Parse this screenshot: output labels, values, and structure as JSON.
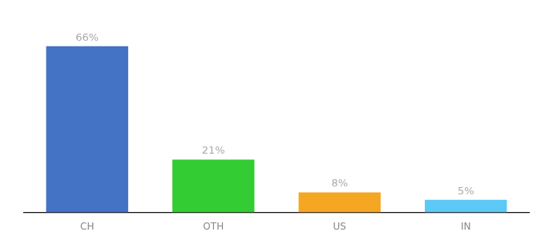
{
  "chart_data": {
    "type": "bar",
    "categories": [
      "CH",
      "OTH",
      "US",
      "IN"
    ],
    "values": [
      66,
      21,
      8,
      5
    ],
    "value_labels": [
      "66%",
      "21%",
      "8%",
      "5%"
    ],
    "colors": [
      "#4472c4",
      "#33cc33",
      "#f5a623",
      "#5bc8f5"
    ],
    "ylim": [
      0,
      78
    ],
    "data_labels": true,
    "tick_labels": "x",
    "grid": false
  }
}
